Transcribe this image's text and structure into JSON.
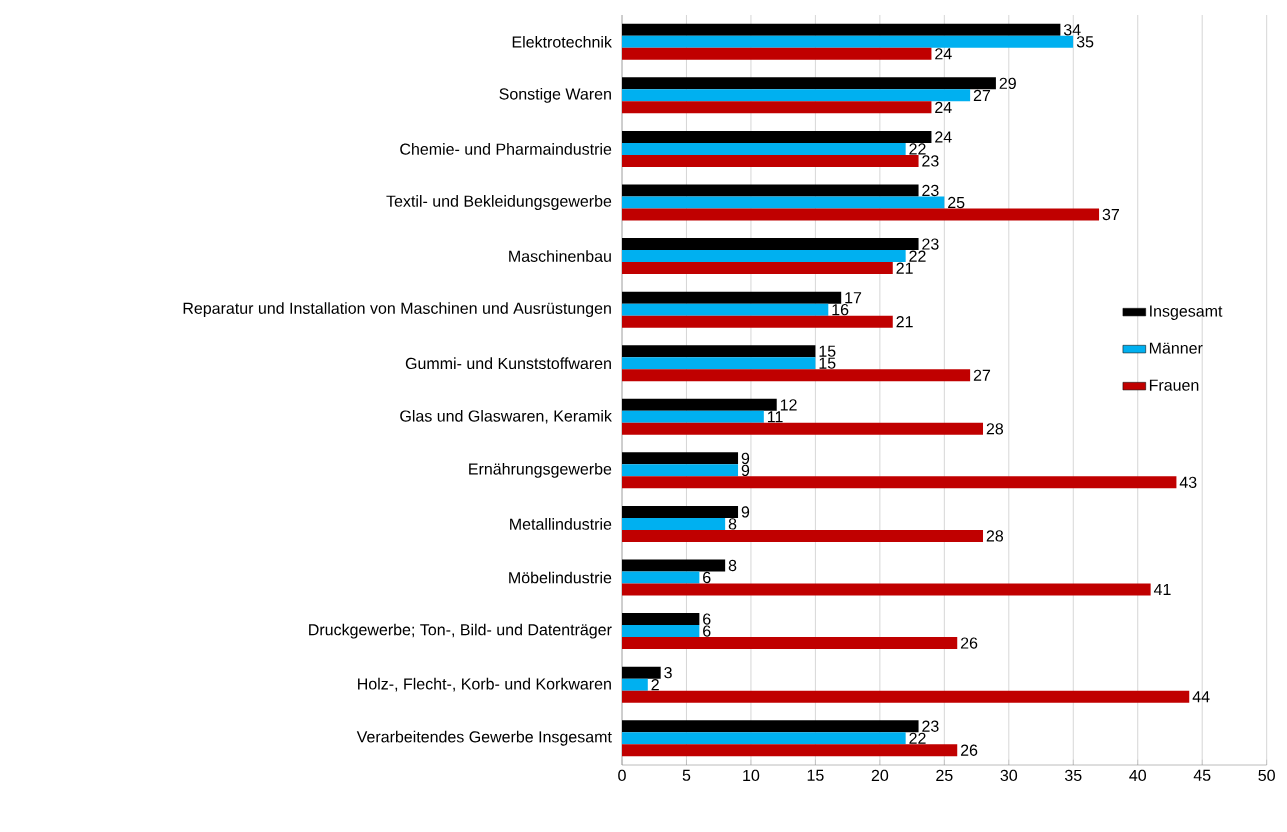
{
  "chart_data": {
    "type": "bar",
    "orientation": "horizontal",
    "categories": [
      "Elektrotechnik",
      "Sonstige Waren",
      "Chemie- und Pharmaindustrie",
      "Textil- und Bekleidungsgewerbe",
      "Maschinenbau",
      "Reparatur und Installation von Maschinen und Ausrüstungen",
      "Gummi- und Kunststoffwaren",
      "Glas und Glaswaren, Keramik",
      "Ernährungsgewerbe",
      "Metallindustrie",
      "Möbelindustrie",
      "Druckgewerbe; Ton-, Bild- und Datenträger",
      "Holz-, Flecht-, Korb- und Korkwaren",
      "Verarbeitendes Gewerbe Insgesamt"
    ],
    "series": [
      {
        "name": "Insgesamt",
        "color": "#000000",
        "values": [
          34,
          29,
          24,
          23,
          23,
          17,
          15,
          12,
          9,
          9,
          8,
          6,
          3,
          23
        ]
      },
      {
        "name": "Männer",
        "color": "#00b0f0",
        "values": [
          35,
          27,
          22,
          25,
          22,
          16,
          15,
          11,
          9,
          8,
          6,
          6,
          2,
          22
        ]
      },
      {
        "name": "Frauen",
        "color": "#c00000",
        "values": [
          24,
          24,
          23,
          37,
          21,
          21,
          27,
          28,
          43,
          28,
          41,
          26,
          44,
          26
        ]
      }
    ],
    "xlim": [
      0,
      50
    ],
    "xticks": [
      0,
      5,
      10,
      15,
      20,
      25,
      30,
      35,
      40,
      45,
      50
    ],
    "grid": "x",
    "legend": "right",
    "data_labels": true
  }
}
